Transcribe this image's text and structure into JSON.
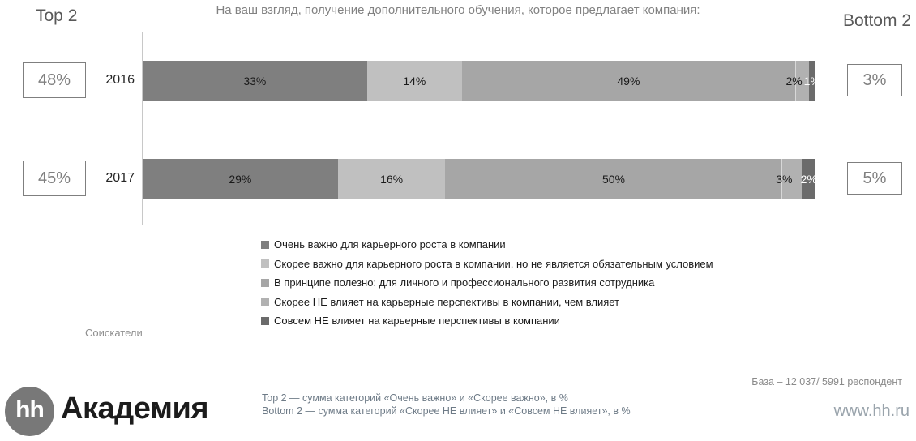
{
  "title": "На ваш взгляд, получение дополнительного обучения, которое предлагает компания:",
  "top2_label": "Top 2",
  "bottom2_label": "Bottom 2",
  "audience_label": "Соискатели",
  "footer": {
    "logo_text": "hh",
    "brand": "Академия",
    "note_top2": "Top 2 — сумма категорий «Очень важно» и «Скорее важно», в %",
    "note_bottom2": "Bottom 2 — сумма категорий «Скорее НЕ влияет» и «Совсем НЕ влияет», в %",
    "base": "База – 12 037/ 5991 респондент",
    "site": "www.hh.ru"
  },
  "colors": {
    "title_text": "#828282",
    "box_border": "#7f7f7f",
    "axis_line": "#c8c8c8",
    "label_black": "#1a1a1a",
    "label_white": "#ffffff"
  },
  "chart_data": {
    "type": "bar",
    "orientation": "horizontal",
    "stacked": true,
    "unit": "%",
    "xlim": [
      0,
      100
    ],
    "grid": false,
    "legend_position": "bottom-left",
    "categories": [
      "2016",
      "2017"
    ],
    "series": [
      {
        "name": "Очень важно для карьерного роста в компании",
        "color": "#7f7f7f",
        "values": [
          33,
          29
        ]
      },
      {
        "name": "Скорее важно для карьерного роста в компании, но не является обязательным условием",
        "color": "#c0c0c0",
        "values": [
          14,
          16
        ]
      },
      {
        "name": "В принципе полезно: для личного и профессионального развития сотрудника",
        "color": "#a6a6a6",
        "values": [
          49,
          50
        ]
      },
      {
        "name": "Скорее НЕ влияет на карьерные перспективы в компании, чем влияет",
        "color": "#b1b1b1",
        "values": [
          2,
          3
        ]
      },
      {
        "name": "Совсем НЕ влияет на карьерные перспективы в компании",
        "color": "#6b6b6b",
        "values": [
          1,
          2
        ]
      }
    ],
    "top2_values": [
      "48%",
      "45%"
    ],
    "bottom2_values": [
      "3%",
      "5%"
    ]
  }
}
